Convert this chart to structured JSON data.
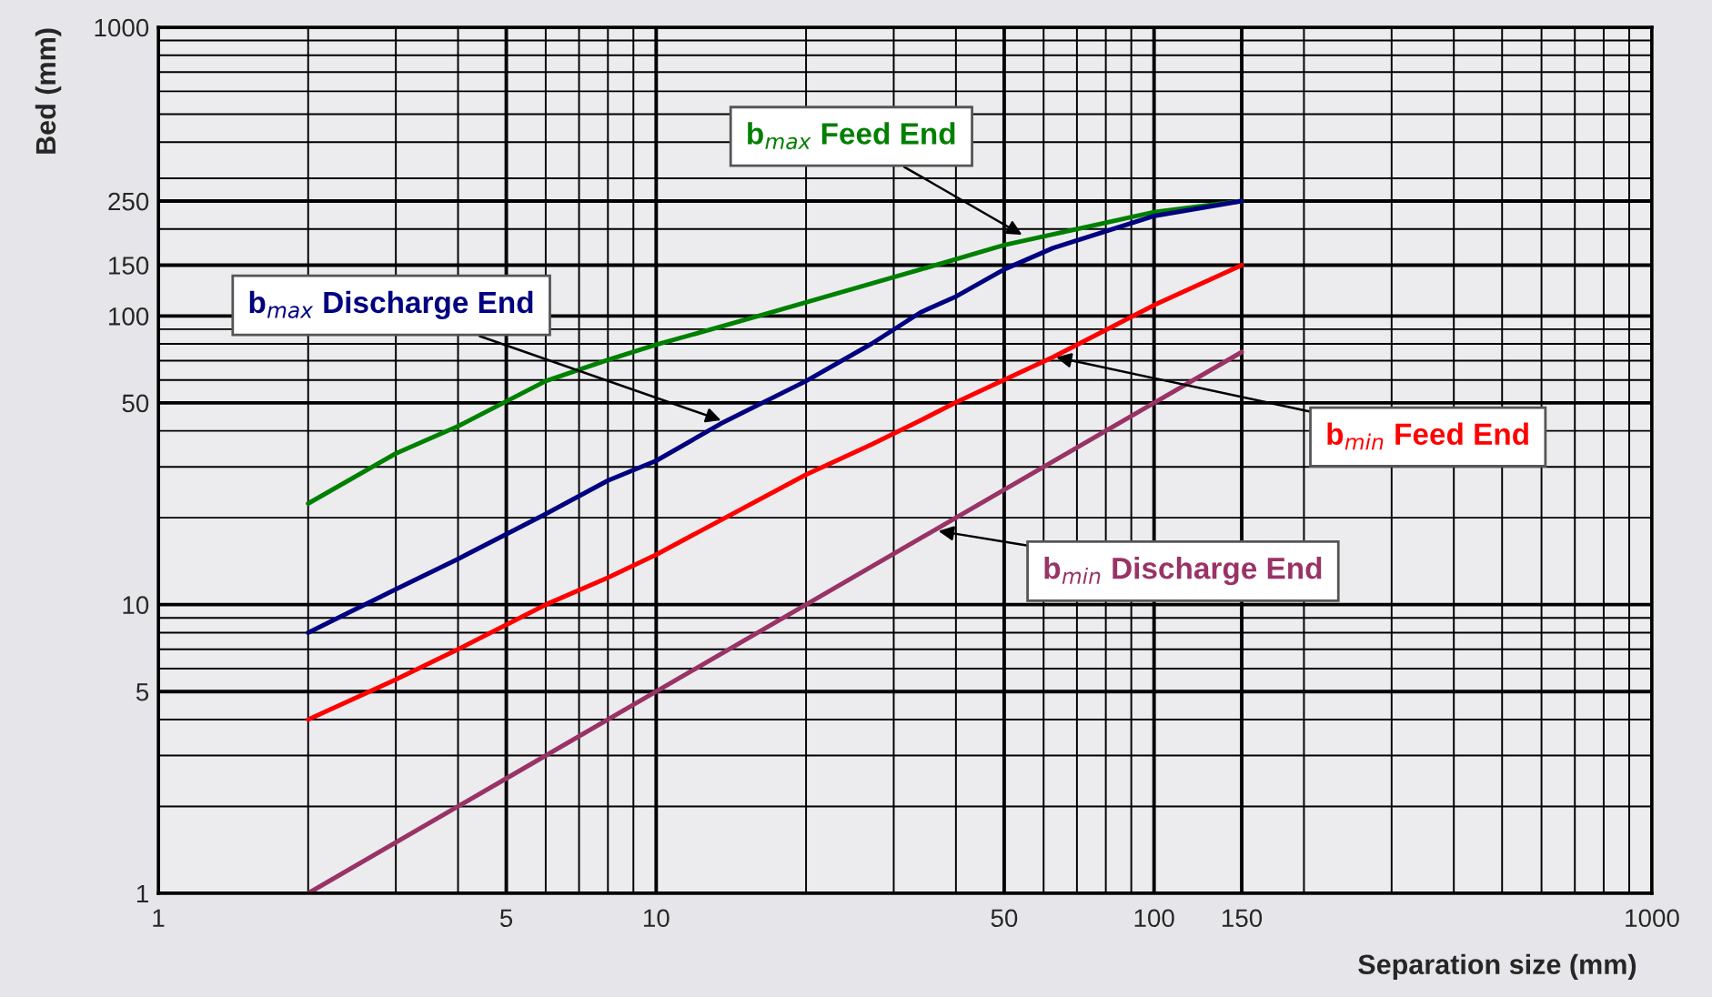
{
  "chart_data": {
    "type": "line",
    "xlabel": "Separation size (mm)",
    "ylabel": "Bed (mm)",
    "log": "xy",
    "xlim": [
      1,
      1000
    ],
    "ylim": [
      1,
      1000
    ],
    "xticks": [
      1,
      5,
      10,
      50,
      100,
      150,
      1000
    ],
    "yticks": [
      1,
      5,
      10,
      50,
      100,
      150,
      250,
      1000
    ],
    "grid": true,
    "legend": false,
    "marker": "none",
    "line_style": "solid",
    "series": [
      {
        "color": "#008000",
        "x": [
          2,
          3,
          4,
          6,
          8,
          10,
          16.4,
          34,
          50,
          100,
          150
        ],
        "values": [
          22.4,
          33.4,
          41.5,
          59.5,
          70.4,
          79.5,
          101,
          145,
          176,
          229,
          250
        ]
      },
      {
        "color": "#000080",
        "x": [
          2,
          3,
          4,
          6,
          8,
          10,
          13.5,
          20,
          27.1,
          34,
          40.1,
          50,
          62.7,
          100,
          150
        ],
        "values": [
          8,
          11.3,
          14.4,
          20.6,
          26.9,
          31.5,
          42.4,
          59.5,
          80.2,
          103,
          117,
          145,
          172,
          222,
          250
        ]
      },
      {
        "color": "#ff0000",
        "x": [
          2,
          3,
          4,
          6,
          8,
          10,
          20,
          27.1,
          34,
          40.1,
          62.7,
          100,
          150
        ],
        "values": [
          4,
          5.5,
          7,
          10,
          12.4,
          14.9,
          28.2,
          35.9,
          43.5,
          50.3,
          72.1,
          109,
          150
        ]
      },
      {
        "color": "#993366",
        "x": [
          2,
          5,
          10,
          20,
          50,
          100,
          150
        ],
        "values": [
          1,
          2.5,
          5,
          10,
          25,
          50,
          75
        ]
      }
    ],
    "annotations": [
      {
        "text": "b$_{max}$ Feed End",
        "x": 54.3,
        "y": 191
      },
      {
        "text": "b$_{max}$ Discharge End",
        "x": 13.5,
        "y": 43.5
      },
      {
        "text": "b$_{min}$ Feed End",
        "x": 63.6,
        "y": 72
      },
      {
        "text": "b$_{min}$ Discharge End",
        "x": 36.9,
        "y": 18
      }
    ]
  }
}
